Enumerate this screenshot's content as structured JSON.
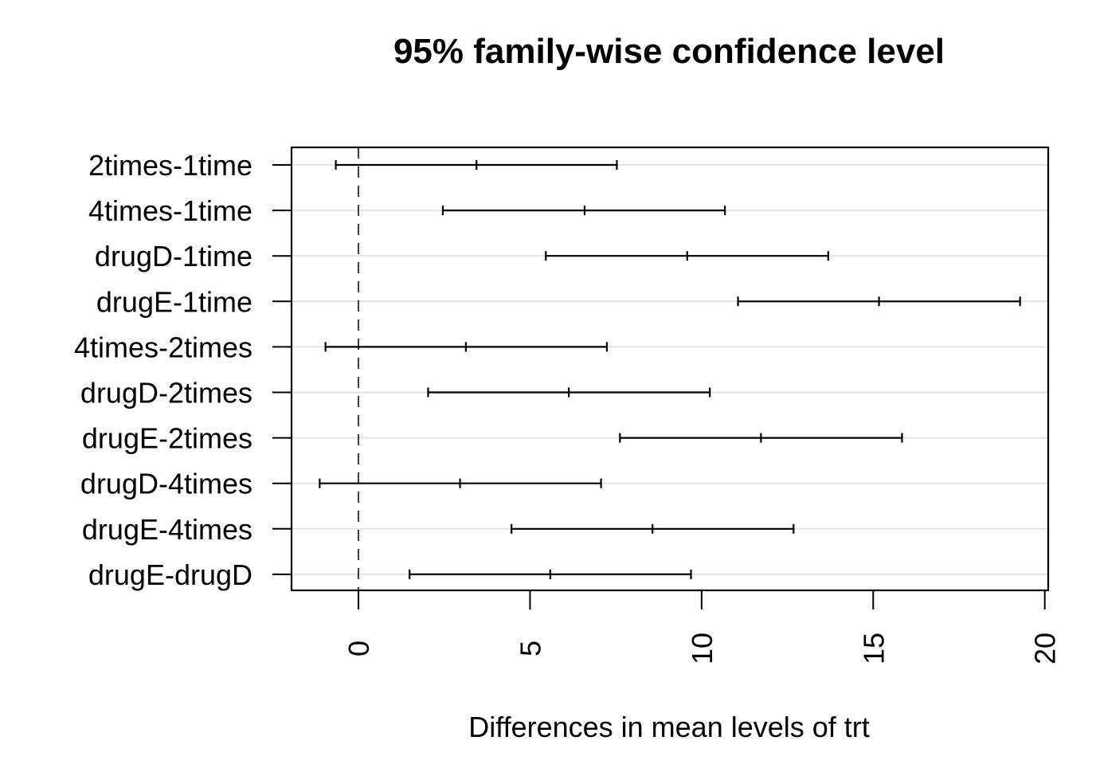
{
  "chart_data": {
    "type": "interval",
    "title": "95% family-wise confidence level",
    "xlabel": "Differences in mean levels of trt",
    "ylabel": "",
    "xlim": [
      -1.95,
      20.1
    ],
    "xticks": [
      0,
      5,
      10,
      15,
      20
    ],
    "xtick_labels": [
      "0",
      "5",
      "10",
      "15",
      "20"
    ],
    "reference_line": {
      "x": 0,
      "style": "dashed"
    },
    "grid": "horizontal",
    "comparisons": [
      {
        "label": "2times-1time",
        "lwr": -0.66,
        "diff": 3.44,
        "upr": 7.53
      },
      {
        "label": "4times-1time",
        "lwr": 2.46,
        "diff": 6.59,
        "upr": 10.68
      },
      {
        "label": "drugD-1time",
        "lwr": 5.46,
        "diff": 9.58,
        "upr": 13.69
      },
      {
        "label": "drugE-1time",
        "lwr": 11.06,
        "diff": 15.17,
        "upr": 19.28
      },
      {
        "label": "4times-2times",
        "lwr": -0.96,
        "diff": 3.13,
        "upr": 7.24
      },
      {
        "label": "drugD-2times",
        "lwr": 2.03,
        "diff": 6.13,
        "upr": 10.24
      },
      {
        "label": "drugE-2times",
        "lwr": 7.62,
        "diff": 11.73,
        "upr": 15.84
      },
      {
        "label": "drugD-4times",
        "lwr": -1.13,
        "diff": 2.96,
        "upr": 7.07
      },
      {
        "label": "drugE-4times",
        "lwr": 4.46,
        "diff": 8.57,
        "upr": 12.68
      },
      {
        "label": "drugE-drugD",
        "lwr": 1.49,
        "diff": 5.59,
        "upr": 9.69
      }
    ]
  }
}
